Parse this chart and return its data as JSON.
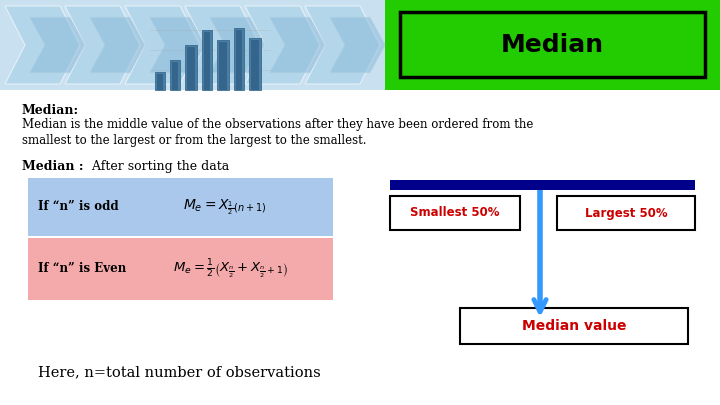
{
  "title": "Median",
  "title_box_color": "#22cc00",
  "title_text_color": "#000000",
  "bg_color": "#ffffff",
  "header_bold": "Median:",
  "header_text1": "Median is the middle value of the observations after they have been ordered from the",
  "header_text2": "smallest to the largest or from the largest to the smallest.",
  "subheader_bold": "Median :",
  "subheader_normal": " After sorting the data",
  "formula_box1_color": "#aac8ec",
  "formula_box2_color": "#f4aaaa",
  "formula1_left": "If “n” is odd",
  "formula1_math": "$M_e = X_{\\frac{1}{2}(n+1)}$",
  "formula2_left": "If “n” is Even",
  "formula2_math": "$M_e = \\frac{1}{2}\\left(X_{\\frac{n}{2}} + X_{\\frac{n}{2}+1}\\right)$",
  "box_smallest": "Smallest 50%",
  "box_largest": "Largest 50%",
  "box_median_val": "Median value",
  "box_text_color": "#cc0000",
  "bar_color": "#00008b",
  "arrow_color": "#3399ff",
  "here_text": "Here, n=total number of observations",
  "green_bg": "#22cc00",
  "light_blue_bg": "#c8e0f0",
  "chevron_color1": "#a8d0e8",
  "chevron_color2": "#88b8d8"
}
